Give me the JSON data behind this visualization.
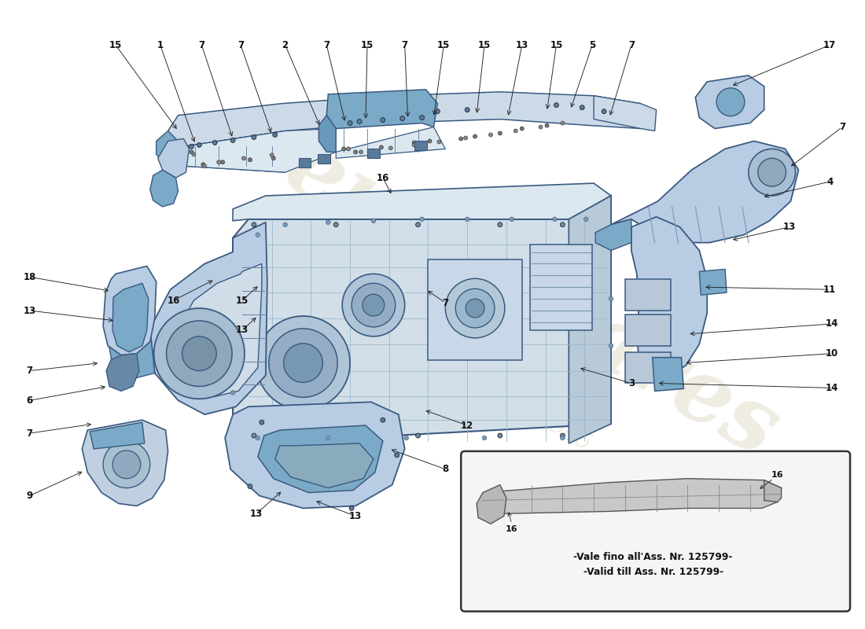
{
  "bg_color": "#ffffff",
  "pf": "#b8cce4",
  "pe": "#3a5a80",
  "pd": "#7aaac8",
  "pm": "#ccdae8",
  "pl": "#dce8f0",
  "sketch": "#c8c8c8",
  "sketch_e": "#555555",
  "wm1": "eurospares",
  "wm2": "a passion since 1985",
  "inset1": "-Vale fino all'Ass. Nr. 125799-",
  "inset2": "-Valid till Ass. Nr. 125799-",
  "labels_top": [
    [
      "15",
      148,
      55
    ],
    [
      "1",
      205,
      55
    ],
    [
      "7",
      258,
      55
    ],
    [
      "7",
      308,
      55
    ],
    [
      "2",
      365,
      55
    ],
    [
      "7",
      418,
      55
    ],
    [
      "15",
      470,
      55
    ],
    [
      "7",
      518,
      55
    ],
    [
      "15",
      568,
      55
    ],
    [
      "15",
      620,
      55
    ],
    [
      "13",
      668,
      55
    ],
    [
      "15",
      712,
      55
    ],
    [
      "5",
      758,
      55
    ],
    [
      "7",
      808,
      55
    ],
    [
      "17",
      1060,
      55
    ]
  ],
  "labels_right": [
    [
      "7",
      1078,
      158
    ],
    [
      "4",
      1060,
      228
    ],
    [
      "13",
      1010,
      288
    ],
    [
      "11",
      1062,
      368
    ],
    [
      "14",
      1065,
      410
    ],
    [
      "10",
      1065,
      448
    ],
    [
      "14",
      1065,
      492
    ]
  ],
  "labels_left": [
    [
      "18",
      38,
      352
    ],
    [
      "13",
      38,
      395
    ],
    [
      "7",
      38,
      472
    ],
    [
      "6",
      38,
      510
    ],
    [
      "7",
      38,
      552
    ],
    [
      "9",
      38,
      632
    ]
  ],
  "labels_mid": [
    [
      "16",
      222,
      382
    ],
    [
      "15",
      310,
      382
    ],
    [
      "13",
      310,
      420
    ],
    [
      "16",
      490,
      225
    ],
    [
      "7",
      570,
      385
    ],
    [
      "3",
      808,
      488
    ],
    [
      "12",
      598,
      542
    ],
    [
      "8",
      570,
      598
    ],
    [
      "13",
      455,
      658
    ],
    [
      "13",
      328,
      655
    ]
  ]
}
